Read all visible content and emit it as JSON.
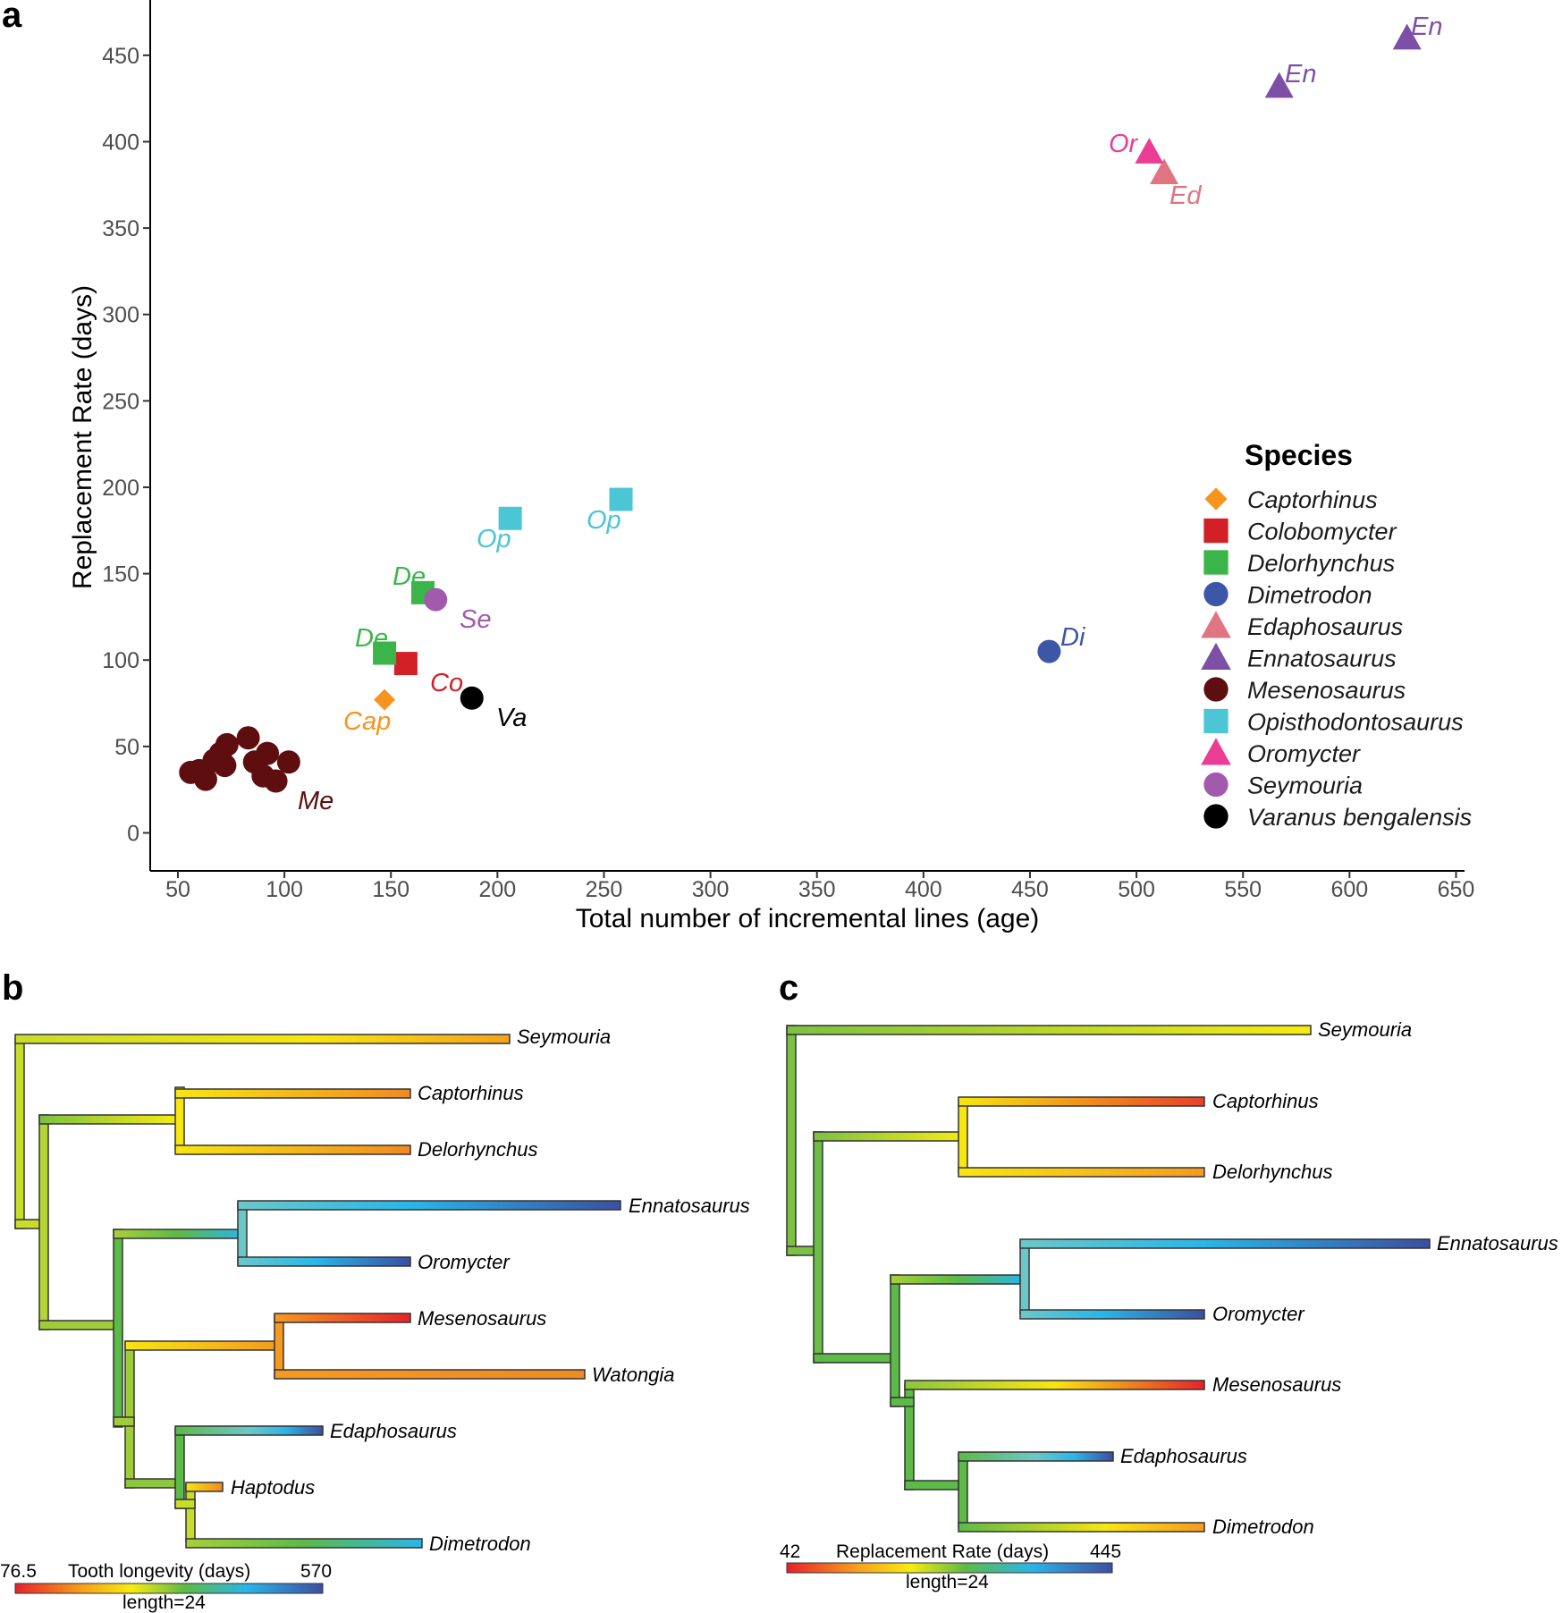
{
  "panels": {
    "a": "a",
    "b": "b",
    "c": "c"
  },
  "chart_data": [
    {
      "type": "scatter",
      "title": "",
      "xlabel": "Total number of incremental lines (age)",
      "ylabel": "Replacement Rate (days)",
      "xlim": [
        37,
        654
      ],
      "ylim": [
        -22,
        482
      ],
      "xticks": [
        50,
        100,
        150,
        200,
        250,
        300,
        350,
        400,
        450,
        500,
        550,
        600,
        650
      ],
      "yticks": [
        0,
        50,
        100,
        150,
        200,
        250,
        300,
        350,
        400,
        450
      ],
      "legend_title": "Species",
      "legend_position": "right",
      "series": [
        {
          "name": "Captorhinus",
          "color": "#f7941d",
          "shape": "diamond",
          "points": [
            [
              147,
              77
            ]
          ]
        },
        {
          "name": "Colobomycter",
          "color": "#d32027",
          "shape": "square",
          "points": [
            [
              157,
              98
            ]
          ]
        },
        {
          "name": "Delorhynchus",
          "color": "#3bb54a",
          "shape": "square",
          "points": [
            [
              147,
              104
            ],
            [
              165,
              139
            ]
          ]
        },
        {
          "name": "Dimetrodon",
          "color": "#3c57a6",
          "shape": "circle",
          "points": [
            [
              459,
              105
            ]
          ]
        },
        {
          "name": "Edaphosaurus",
          "color": "#e07582",
          "shape": "triangle",
          "points": [
            [
              513,
              382
            ]
          ]
        },
        {
          "name": "Ennatosaurus",
          "color": "#7e4fa6",
          "shape": "triangle",
          "points": [
            [
              567,
              432
            ],
            [
              627,
              460
            ]
          ]
        },
        {
          "name": "Mesenosaurus",
          "color": "#5e0e0e",
          "shape": "circle",
          "points": [
            [
              56,
              35
            ],
            [
              60,
              36
            ],
            [
              63,
              31
            ],
            [
              67,
              42
            ],
            [
              70,
              46
            ],
            [
              72,
              39
            ],
            [
              73,
              51
            ],
            [
              83,
              55
            ],
            [
              86,
              41
            ],
            [
              90,
              33
            ],
            [
              92,
              46
            ],
            [
              96,
              30
            ],
            [
              102,
              41
            ]
          ]
        },
        {
          "name": "Opisthodontosaurus",
          "color": "#4cc6d4",
          "shape": "square",
          "points": [
            [
              206,
              182
            ],
            [
              258,
              193
            ]
          ]
        },
        {
          "name": "Oromycter",
          "color": "#ec3d96",
          "shape": "triangle",
          "points": [
            [
              506,
              394
            ]
          ]
        },
        {
          "name": "Seymouria",
          "color": "#a25aad",
          "shape": "circle",
          "points": [
            [
              171,
              135
            ]
          ]
        },
        {
          "name": "Varanus bengalensis",
          "color": "#000000",
          "shape": "circle",
          "points": [
            [
              188,
              78
            ]
          ]
        }
      ],
      "annotations": [
        {
          "text": "Cap",
          "color": "#f7941d"
        },
        {
          "text": "Co",
          "color": "#d32027"
        },
        {
          "text": "De",
          "color": "#3bb54a"
        },
        {
          "text": "De",
          "color": "#3bb54a"
        },
        {
          "text": "Di",
          "color": "#3c57a6"
        },
        {
          "text": "Ed",
          "color": "#e07582"
        },
        {
          "text": "En",
          "color": "#7e4fa6"
        },
        {
          "text": "En",
          "color": "#7e4fa6"
        },
        {
          "text": "Me",
          "color": "#5e0e0e"
        },
        {
          "text": "Op",
          "color": "#4cc6d4"
        },
        {
          "text": "Op",
          "color": "#4cc6d4"
        },
        {
          "text": "Or",
          "color": "#ec3d96"
        },
        {
          "text": "Se",
          "color": "#a25aad"
        },
        {
          "text": "Va",
          "color": "#000000"
        }
      ]
    },
    {
      "type": "tree",
      "title": "Tooth longevity (days)",
      "scale_min": "76.5",
      "scale_max": "570",
      "scale_caption": "length=24",
      "tips": [
        "Seymouria",
        "Captorhinus",
        "Delorhynchus",
        "Ennatosaurus",
        "Oromycter",
        "Mesenosaurus",
        "Watongia",
        "Edaphosaurus",
        "Haptodus",
        "Dimetrodon"
      ]
    },
    {
      "type": "tree",
      "title": "Replacement Rate (days)",
      "scale_min": "42",
      "scale_max": "445",
      "scale_caption": "length=24",
      "tips": [
        "Seymouria",
        "Captorhinus",
        "Delorhynchus",
        "Ennatosaurus",
        "Oromycter",
        "Mesenosaurus",
        "Edaphosaurus",
        "Dimetrodon"
      ]
    }
  ]
}
